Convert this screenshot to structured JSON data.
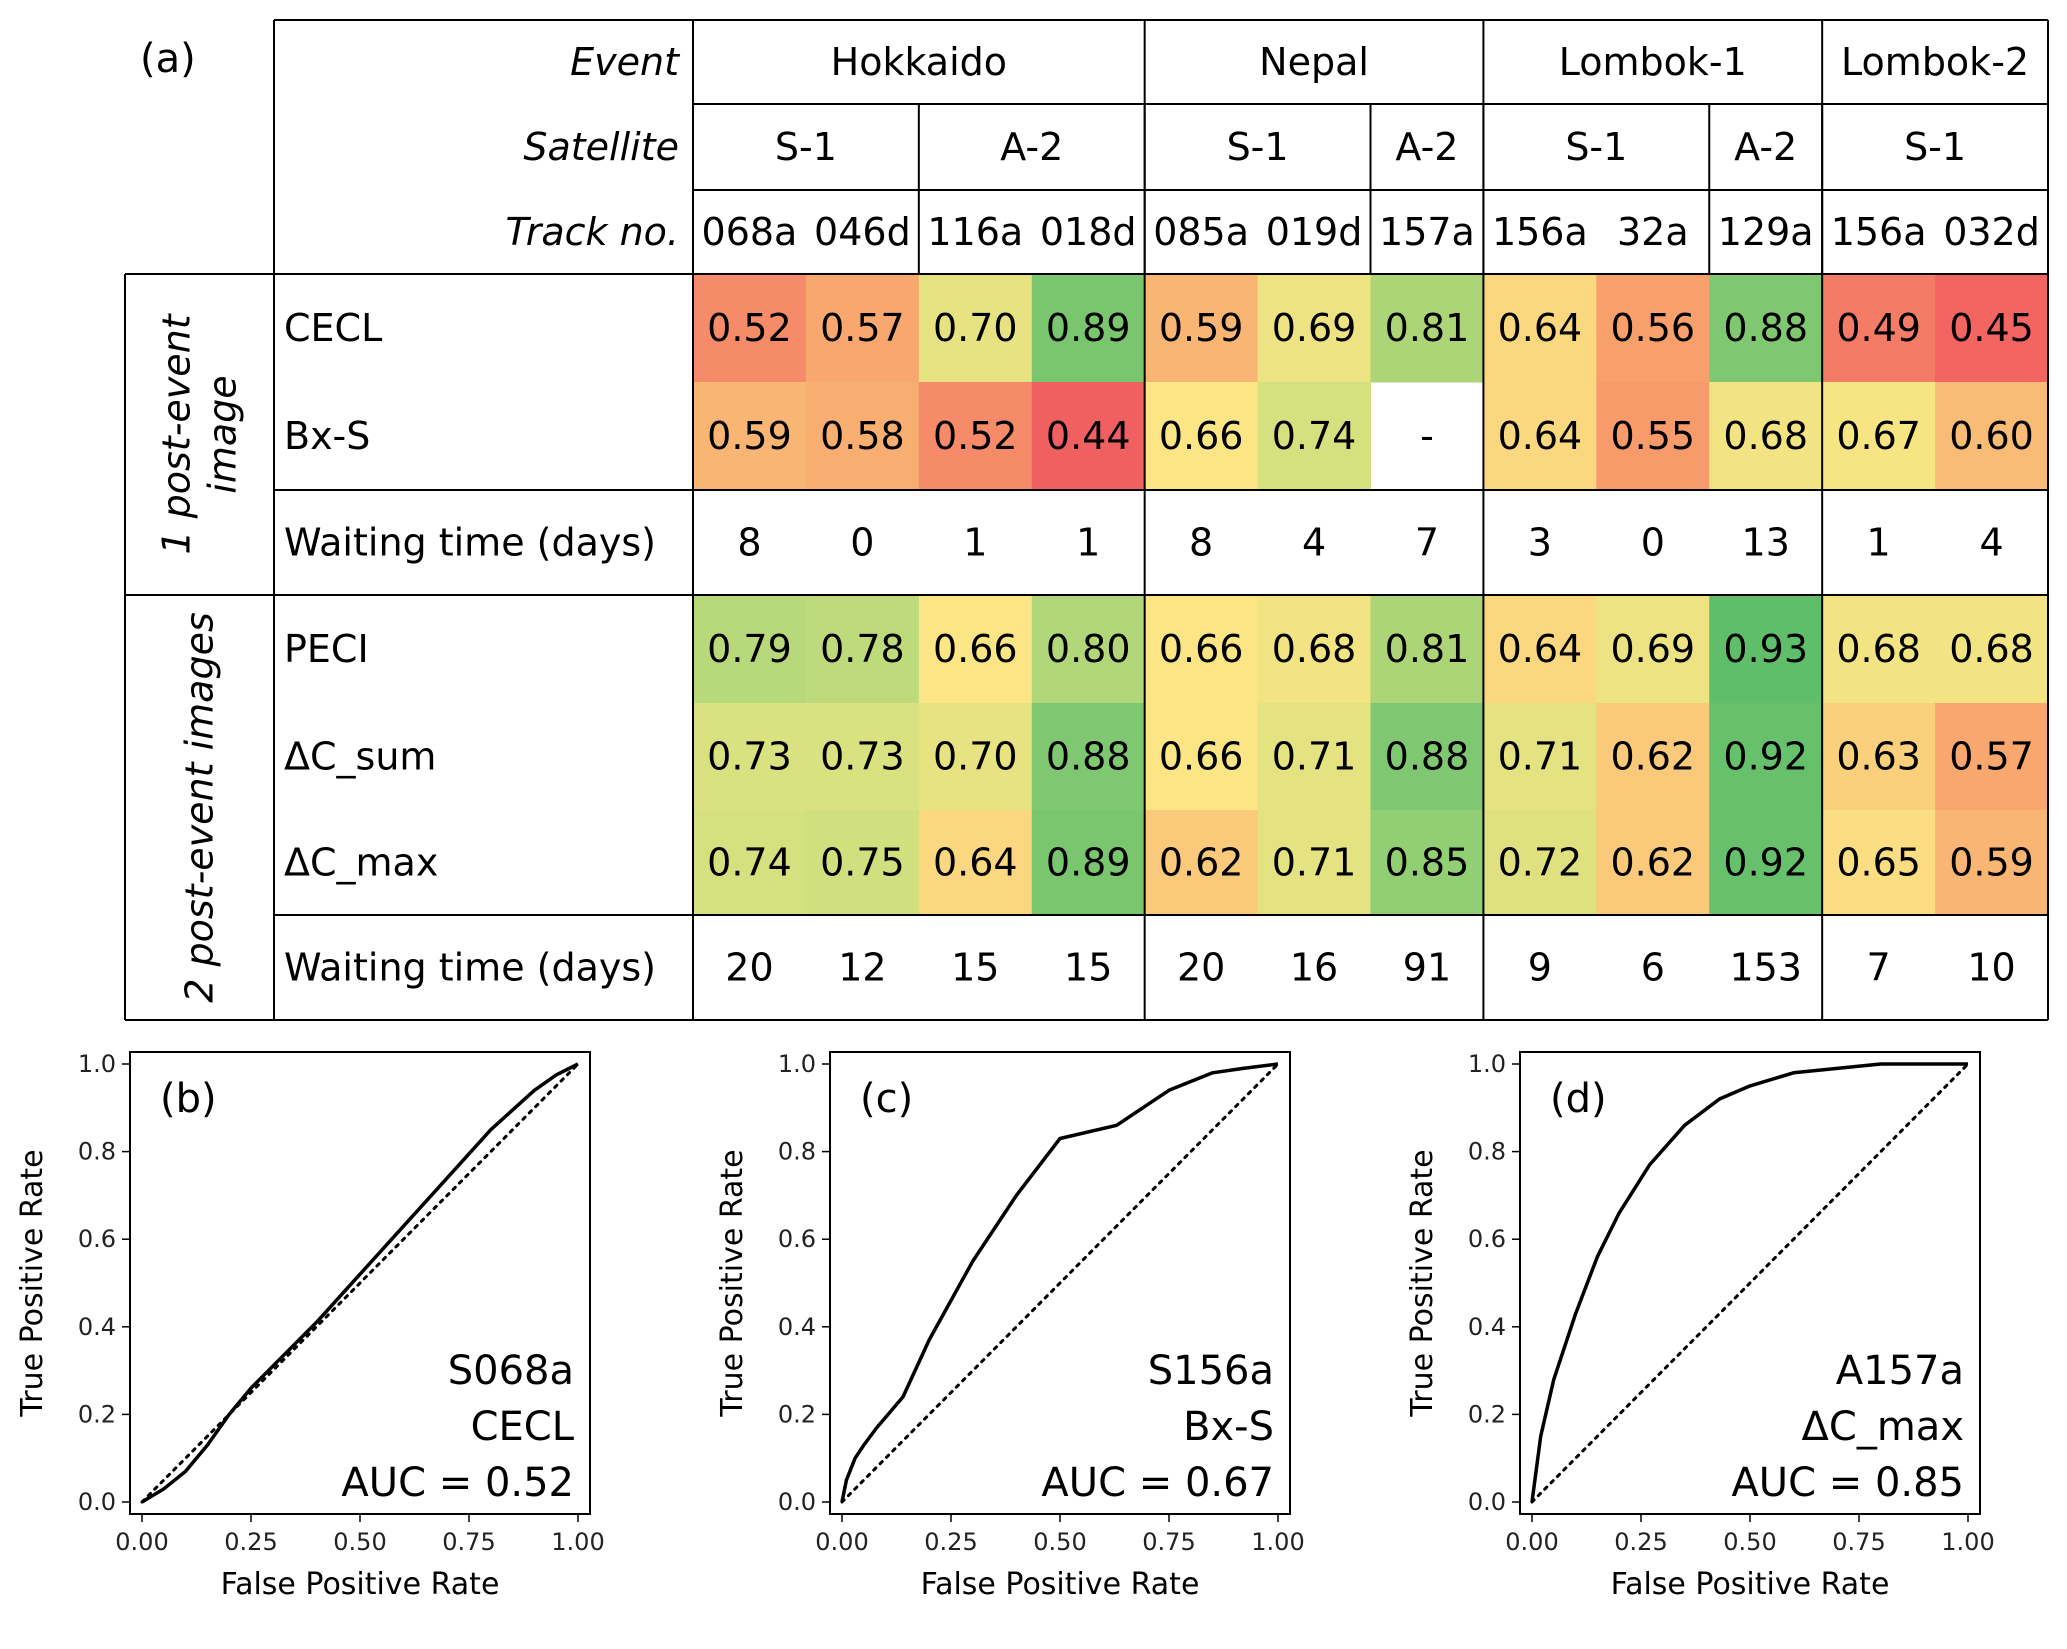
{
  "panel_label": "(a)",
  "header": {
    "row_labels": [
      "Event",
      "Satellite",
      "Track no."
    ],
    "events": [
      {
        "name": "Hokkaido",
        "span": 4
      },
      {
        "name": "Nepal",
        "span": 3
      },
      {
        "name": "Lombok-1",
        "span": 3
      },
      {
        "name": "Lombok-2",
        "span": 2
      }
    ],
    "satellites": [
      {
        "name": "S-1",
        "span": 2
      },
      {
        "name": "A-2",
        "span": 2
      },
      {
        "name": "S-1",
        "span": 2
      },
      {
        "name": "A-2",
        "span": 1
      },
      {
        "name": "S-1",
        "span": 2
      },
      {
        "name": "A-2",
        "span": 1
      },
      {
        "name": "S-1",
        "span": 2
      }
    ],
    "tracks": [
      "068a",
      "046d",
      "116a",
      "018d",
      "085a",
      "019d",
      "157a",
      "156a",
      "32a",
      "129a",
      "156a",
      "032d"
    ]
  },
  "groups": [
    {
      "label": [
        "1 post-event",
        "image"
      ],
      "rows": [
        0,
        1,
        2
      ]
    },
    {
      "label": [
        "2 post-event images"
      ],
      "rows": [
        3,
        4,
        5,
        6
      ]
    }
  ],
  "rows": [
    {
      "label": "CECL",
      "heat": true,
      "values": [
        "0.52",
        "0.57",
        "0.70",
        "0.89",
        "0.59",
        "0.69",
        "0.81",
        "0.64",
        "0.56",
        "0.88",
        "0.49",
        "0.45"
      ]
    },
    {
      "label": "Bx-S",
      "heat": true,
      "values": [
        "0.59",
        "0.58",
        "0.52",
        "0.44",
        "0.66",
        "0.74",
        "-",
        "0.64",
        "0.55",
        "0.68",
        "0.67",
        "0.60"
      ]
    },
    {
      "label": "Waiting time (days)",
      "heat": false,
      "values": [
        "8",
        "0",
        "1",
        "1",
        "8",
        "4",
        "7",
        "3",
        "0",
        "13",
        "1",
        "4"
      ]
    },
    {
      "label": "PECI",
      "heat": true,
      "values": [
        "0.79",
        "0.78",
        "0.66",
        "0.80",
        "0.66",
        "0.68",
        "0.81",
        "0.64",
        "0.69",
        "0.93",
        "0.68",
        "0.68"
      ]
    },
    {
      "label": "ΔC_sum",
      "heat": true,
      "values": [
        "0.73",
        "0.73",
        "0.70",
        "0.88",
        "0.66",
        "0.71",
        "0.88",
        "0.71",
        "0.62",
        "0.92",
        "0.63",
        "0.57"
      ]
    },
    {
      "label": "ΔC_max",
      "heat": true,
      "values": [
        "0.74",
        "0.75",
        "0.64",
        "0.89",
        "0.62",
        "0.71",
        "0.85",
        "0.72",
        "0.62",
        "0.92",
        "0.65",
        "0.59"
      ]
    },
    {
      "label": "Waiting time (days)",
      "heat": false,
      "values": [
        "20",
        "12",
        "15",
        "15",
        "20",
        "16",
        "91",
        "9",
        "6",
        "153",
        "7",
        "10"
      ]
    }
  ],
  "colors": {
    "low": "#f06a6a",
    "mid": "#fbe38a",
    "high": "#62be6b",
    "line": "#000000"
  },
  "chart_data": [
    {
      "type": "line",
      "panel": "(b)",
      "xlabel": "False Positive Rate",
      "ylabel": "True Positive Rate",
      "xlim": [
        0,
        1
      ],
      "ylim": [
        0,
        1
      ],
      "ticks": [
        "0.00",
        "0.25",
        "0.50",
        "0.75",
        "1.00"
      ],
      "yticks": [
        "0.0",
        "0.2",
        "0.4",
        "0.6",
        "0.8",
        "1.0"
      ],
      "annotation": [
        "S068a",
        "CECL",
        "AUC = 0.52"
      ],
      "x": [
        0,
        0.05,
        0.1,
        0.15,
        0.2,
        0.25,
        0.3,
        0.4,
        0.5,
        0.6,
        0.7,
        0.8,
        0.9,
        0.95,
        1
      ],
      "y": [
        0,
        0.03,
        0.07,
        0.13,
        0.2,
        0.26,
        0.31,
        0.41,
        0.52,
        0.63,
        0.74,
        0.85,
        0.94,
        0.975,
        1
      ]
    },
    {
      "type": "line",
      "panel": "(c)",
      "xlabel": "False Positive Rate",
      "ylabel": "True Positive Rate",
      "xlim": [
        0,
        1
      ],
      "ylim": [
        0,
        1
      ],
      "ticks": [
        "0.00",
        "0.25",
        "0.50",
        "0.75",
        "1.00"
      ],
      "yticks": [
        "0.0",
        "0.2",
        "0.4",
        "0.6",
        "0.8",
        "1.0"
      ],
      "annotation": [
        "S156a",
        "Bx-S",
        "AUC = 0.67"
      ],
      "x": [
        0,
        0.01,
        0.03,
        0.05,
        0.08,
        0.14,
        0.2,
        0.3,
        0.4,
        0.5,
        0.63,
        0.75,
        0.85,
        0.92,
        1
      ],
      "y": [
        0,
        0.05,
        0.1,
        0.13,
        0.17,
        0.24,
        0.37,
        0.55,
        0.7,
        0.83,
        0.86,
        0.94,
        0.98,
        0.99,
        1
      ]
    },
    {
      "type": "line",
      "panel": "(d)",
      "xlabel": "False Positive Rate",
      "ylabel": "True Positive Rate",
      "xlim": [
        0,
        1
      ],
      "ylim": [
        0,
        1
      ],
      "ticks": [
        "0.00",
        "0.25",
        "0.50",
        "0.75",
        "1.00"
      ],
      "yticks": [
        "0.0",
        "0.2",
        "0.4",
        "0.6",
        "0.8",
        "1.0"
      ],
      "annotation": [
        "A157a",
        "ΔC_max",
        "AUC = 0.85"
      ],
      "x": [
        0,
        0.02,
        0.05,
        0.1,
        0.15,
        0.2,
        0.27,
        0.35,
        0.43,
        0.5,
        0.6,
        0.7,
        0.8,
        1
      ],
      "y": [
        0,
        0.15,
        0.28,
        0.43,
        0.56,
        0.66,
        0.77,
        0.86,
        0.92,
        0.95,
        0.98,
        0.99,
        1,
        1
      ]
    }
  ]
}
